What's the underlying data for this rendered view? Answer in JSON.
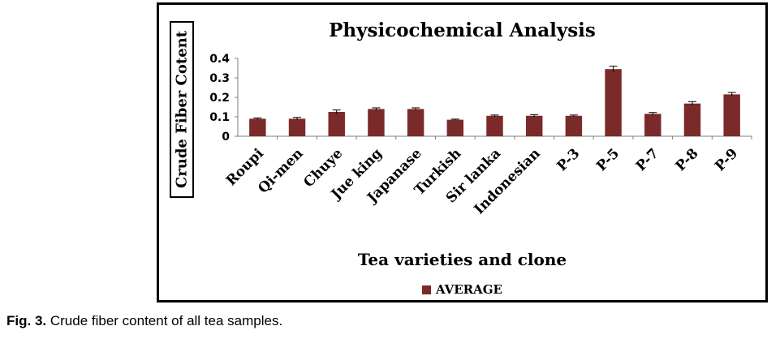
{
  "colors": {
    "bar": "#7b2a2a",
    "axis": "#7f7f7f",
    "frame": "#000000"
  },
  "caption": {
    "label": "Fig. 3.",
    "text": "Crude fiber content of all tea samples."
  },
  "chart_data": {
    "type": "bar",
    "title": "Physicochemical Analysis",
    "xlabel": "Tea varieties and clone",
    "ylabel": "Crude Fiber Cotent",
    "ylim": [
      0,
      0.4
    ],
    "yticks": [
      "0",
      "0.1",
      "0.2",
      "0.3",
      "0.4"
    ],
    "grid": false,
    "legend_position": "bottom",
    "categories": [
      "Roupi",
      "Qi-men",
      "Chuye",
      "Jue king",
      "Japanase",
      "Turkish",
      "Sir lanka",
      "Indonesian",
      "P-3",
      "P-5",
      "P-7",
      "P-8",
      "P-9"
    ],
    "series": [
      {
        "name": "AVERAGE",
        "values": [
          0.09,
          0.09,
          0.125,
          0.14,
          0.14,
          0.085,
          0.105,
          0.105,
          0.105,
          0.345,
          0.115,
          0.168,
          0.215
        ],
        "errors": [
          0.004,
          0.007,
          0.01,
          0.006,
          0.006,
          0.003,
          0.004,
          0.006,
          0.004,
          0.015,
          0.007,
          0.01,
          0.01
        ]
      }
    ]
  }
}
